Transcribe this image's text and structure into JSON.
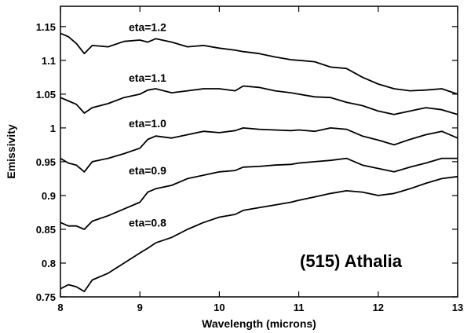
{
  "chart_data": {
    "type": "line",
    "xlabel": "Wavelength (microns)",
    "ylabel": "Emissivity",
    "xlim": [
      8,
      13
    ],
    "ylim": [
      0.75,
      1.18
    ],
    "xticks": [
      8,
      9,
      10,
      11,
      12,
      13
    ],
    "xtick_labels": [
      "8",
      "9",
      "10",
      "11",
      "12",
      "13"
    ],
    "yticks": [
      0.75,
      0.8,
      0.85,
      0.9,
      0.95,
      1.0,
      1.05,
      1.1,
      1.15
    ],
    "ytick_labels": [
      "0.75",
      "0.8",
      "0.85",
      "0.9",
      "0.95",
      "1",
      "1.05",
      "1.1",
      "1.15"
    ],
    "grid": false,
    "legend": "none",
    "annotation": "(515) Athalia",
    "line_color": "#000000",
    "x": [
      8.0,
      8.1,
      8.2,
      8.3,
      8.4,
      8.6,
      8.8,
      9.0,
      9.1,
      9.2,
      9.4,
      9.6,
      9.8,
      10.0,
      10.2,
      10.3,
      10.5,
      10.7,
      10.9,
      11.0,
      11.2,
      11.4,
      11.6,
      11.8,
      12.0,
      12.2,
      12.4,
      12.6,
      12.8,
      13.0
    ],
    "series": [
      {
        "name": "eta=1.2",
        "values": [
          1.14,
          1.135,
          1.125,
          1.11,
          1.122,
          1.12,
          1.128,
          1.13,
          1.127,
          1.132,
          1.127,
          1.12,
          1.122,
          1.118,
          1.115,
          1.113,
          1.11,
          1.105,
          1.101,
          1.1,
          1.098,
          1.09,
          1.088,
          1.075,
          1.065,
          1.058,
          1.055,
          1.056,
          1.058,
          1.05
        ]
      },
      {
        "name": "eta=1.1",
        "values": [
          1.045,
          1.04,
          1.035,
          1.022,
          1.03,
          1.036,
          1.045,
          1.05,
          1.056,
          1.058,
          1.052,
          1.055,
          1.058,
          1.058,
          1.055,
          1.062,
          1.06,
          1.055,
          1.052,
          1.05,
          1.046,
          1.045,
          1.038,
          1.033,
          1.025,
          1.02,
          1.025,
          1.03,
          1.027,
          1.02
        ]
      },
      {
        "name": "eta=1.0",
        "values": [
          0.955,
          0.948,
          0.945,
          0.935,
          0.95,
          0.955,
          0.962,
          0.97,
          0.983,
          0.988,
          0.985,
          0.99,
          0.995,
          0.993,
          0.996,
          1.0,
          0.998,
          0.997,
          0.996,
          0.997,
          0.995,
          1.0,
          0.998,
          0.988,
          0.982,
          0.975,
          0.983,
          0.99,
          0.995,
          0.985
        ]
      },
      {
        "name": "eta=0.9",
        "values": [
          0.86,
          0.855,
          0.855,
          0.85,
          0.862,
          0.87,
          0.88,
          0.89,
          0.905,
          0.91,
          0.915,
          0.925,
          0.93,
          0.935,
          0.937,
          0.942,
          0.943,
          0.945,
          0.946,
          0.948,
          0.95,
          0.952,
          0.955,
          0.945,
          0.94,
          0.935,
          0.942,
          0.948,
          0.955,
          0.955
        ]
      },
      {
        "name": "eta=0.8",
        "values": [
          0.762,
          0.768,
          0.765,
          0.758,
          0.775,
          0.785,
          0.8,
          0.815,
          0.822,
          0.83,
          0.838,
          0.85,
          0.86,
          0.868,
          0.872,
          0.878,
          0.882,
          0.886,
          0.89,
          0.893,
          0.898,
          0.903,
          0.907,
          0.905,
          0.9,
          0.903,
          0.91,
          0.918,
          0.925,
          0.928
        ]
      }
    ]
  }
}
